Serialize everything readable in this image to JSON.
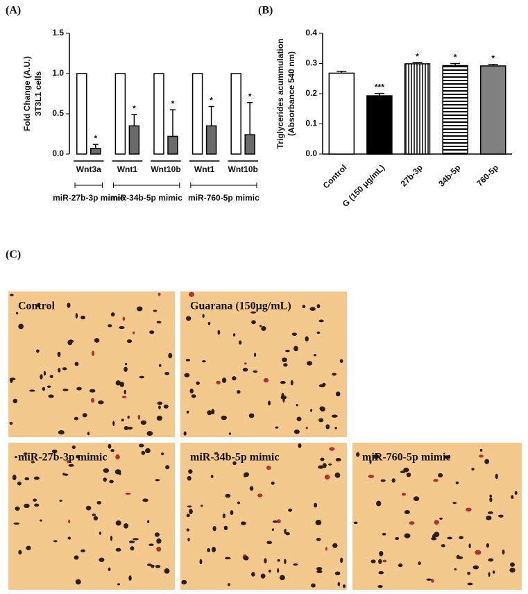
{
  "figure": {
    "panel_labels": [
      "(A)",
      "(B)",
      "(C)"
    ],
    "images": [
      "Control",
      "Guarana (150µg/mL)",
      "miR-27b-3p mimic",
      "miR-34b-5p mimic",
      "miR-760-5p mimic"
    ]
  },
  "chart_data": [
    {
      "type": "grouped-bar",
      "ylabel": [
        "Fold Change (A.U.)",
        "3T3L1 cells"
      ],
      "categories": [
        "Wnt3a",
        "Wnt1",
        "Wnt10b",
        "Wnt1",
        "Wnt10b"
      ],
      "category_groups": [
        "miR-27b-3p mimic",
        "miR-34b-5p mimic",
        "miR-34b-5p mimic",
        "miR-760-5p mimic",
        "miR-760-5p mimic"
      ],
      "series": [
        {
          "color": "#ffffff",
          "values": [
            1,
            1,
            1,
            1,
            1
          ]
        },
        {
          "color": "#6b6b6b",
          "values": [
            0.07,
            0.35,
            0.22,
            0.35,
            0.24
          ],
          "errors": [
            0.05,
            0.14,
            0.33,
            0.24,
            0.4
          ],
          "significance": [
            "*",
            "*",
            "*",
            "*",
            "*"
          ]
        }
      ],
      "ylim": [
        0,
        1.5
      ],
      "yticks": [
        {
          "value": 0,
          "label": "0.0"
        },
        {
          "value": 0.5,
          "label": "0.5"
        },
        {
          "value": 1,
          "label": "1.0"
        },
        {
          "value": 1.5,
          "label": "1.5"
        }
      ]
    },
    {
      "type": "bar",
      "ylabel": [
        "Triglycerides acummulation",
        "(Absorbance 540 nm)"
      ],
      "categories": [
        "Control",
        "G (150 μg/mL)",
        "27b-3p",
        "34b-5p",
        "760-5p"
      ],
      "values": [
        0.268,
        0.193,
        0.299,
        0.293,
        0.292
      ],
      "errors": [
        0.006,
        0.008,
        0.004,
        0.007,
        0.005
      ],
      "significance": [
        null,
        "***",
        "*",
        "*",
        "*"
      ],
      "fills": [
        "white",
        "black",
        "vertical",
        "horizontal",
        "gray"
      ],
      "ylim": [
        0,
        0.4
      ],
      "yticks": [
        {
          "value": 0,
          "label": "0.0"
        },
        {
          "value": 0.1,
          "label": "0.1"
        },
        {
          "value": 0.2,
          "label": "0.2"
        },
        {
          "value": 0.3,
          "label": "0.3"
        },
        {
          "value": 0.4,
          "label": "0.4"
        }
      ]
    }
  ]
}
